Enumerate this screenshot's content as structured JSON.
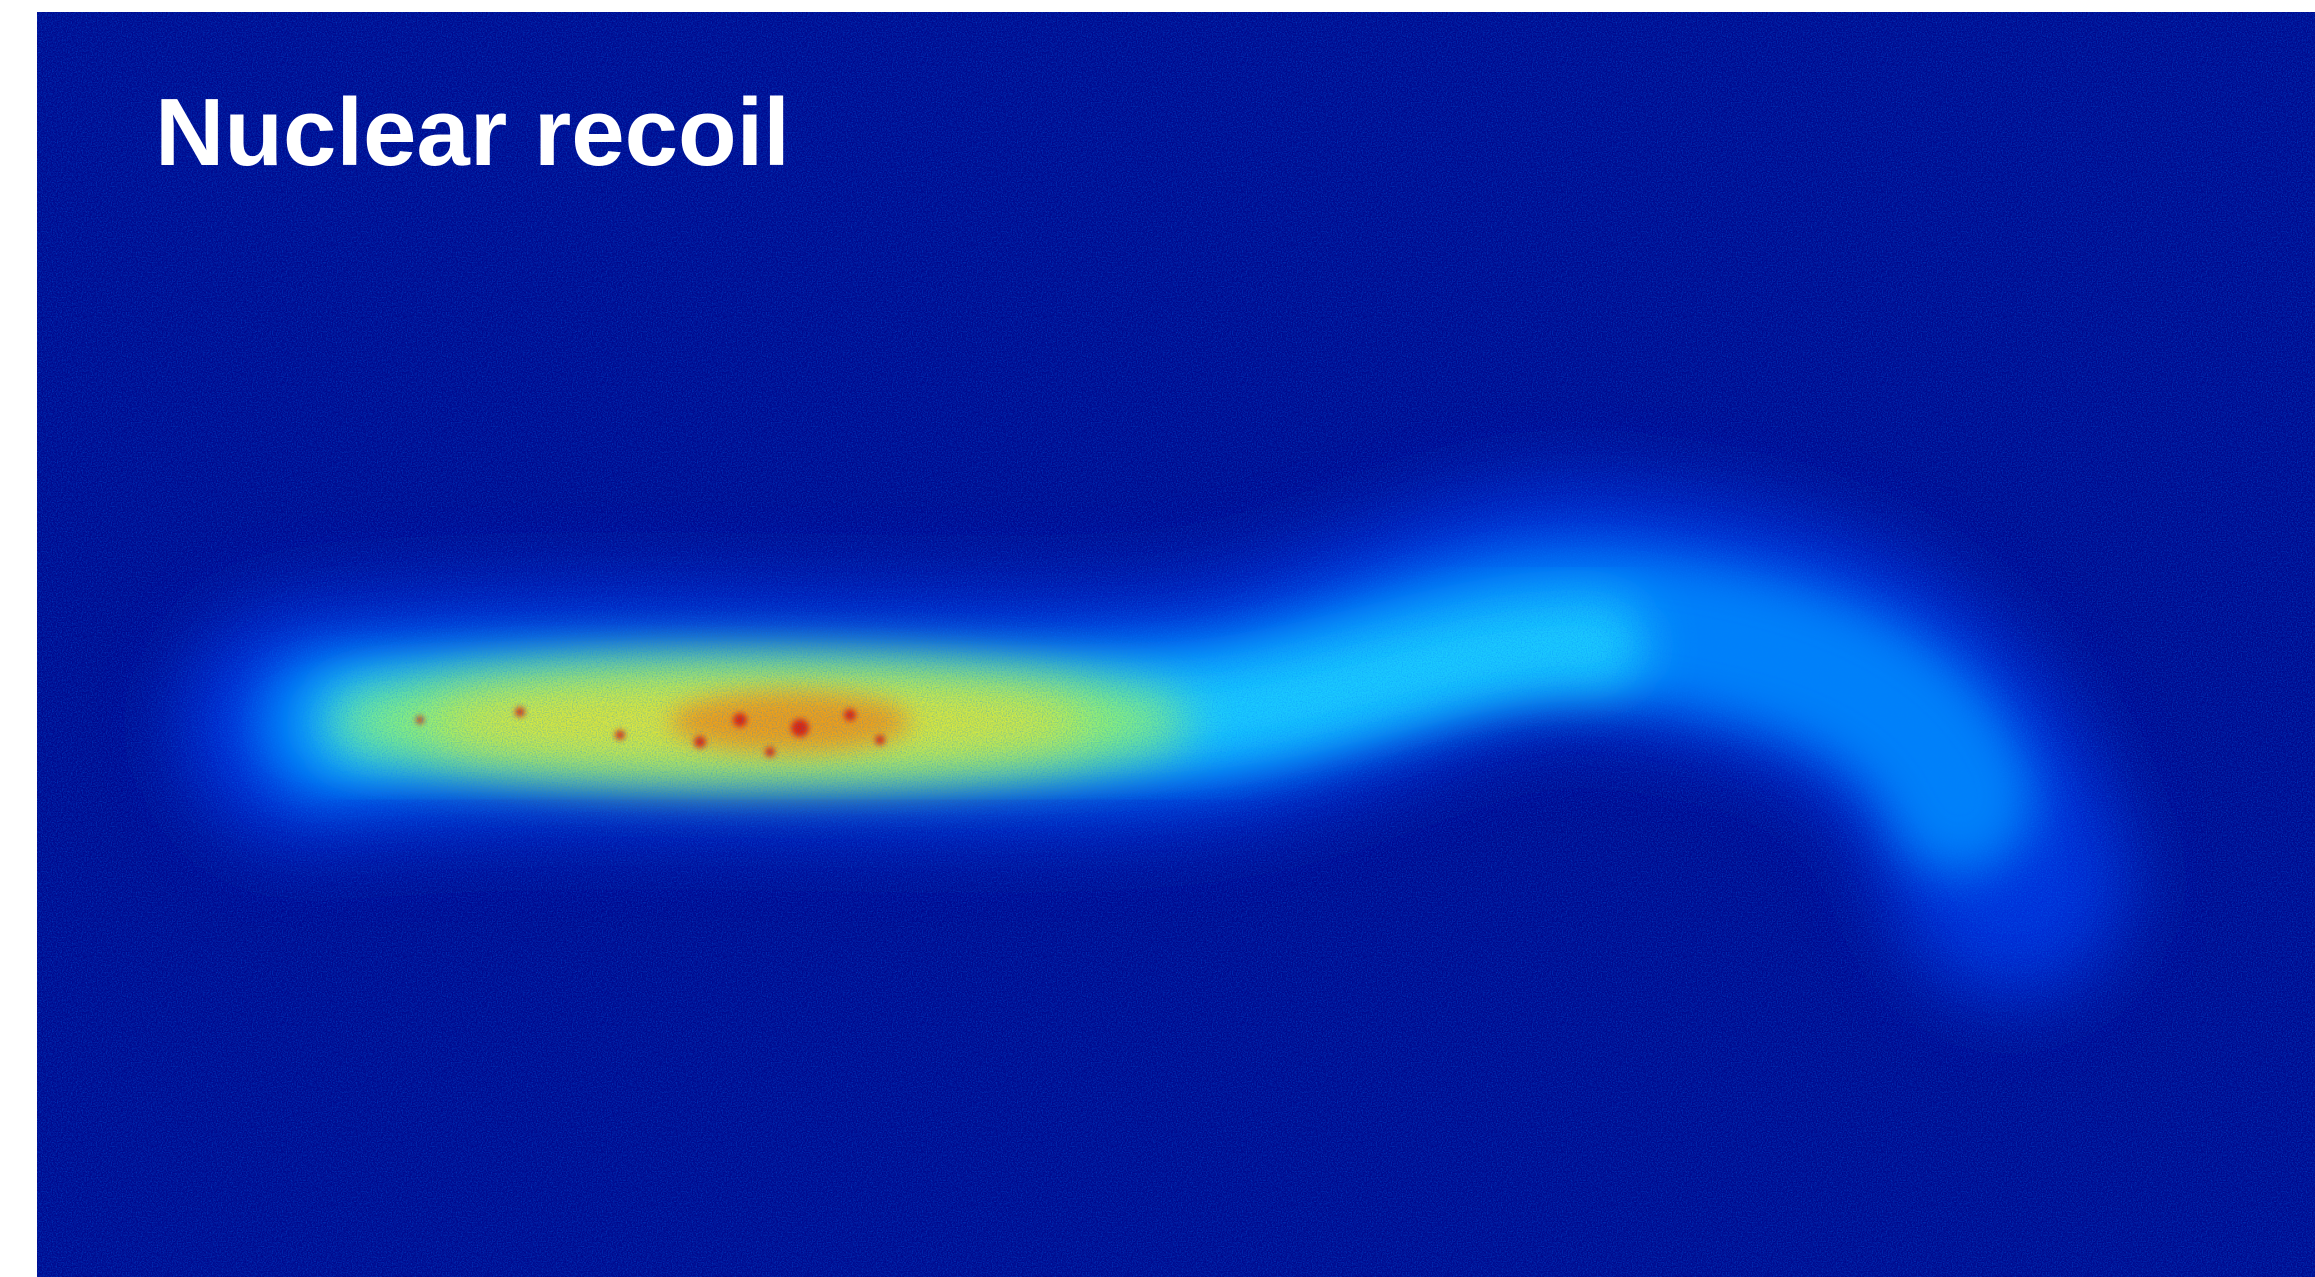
{
  "title": "Nuclear recoil"
}
